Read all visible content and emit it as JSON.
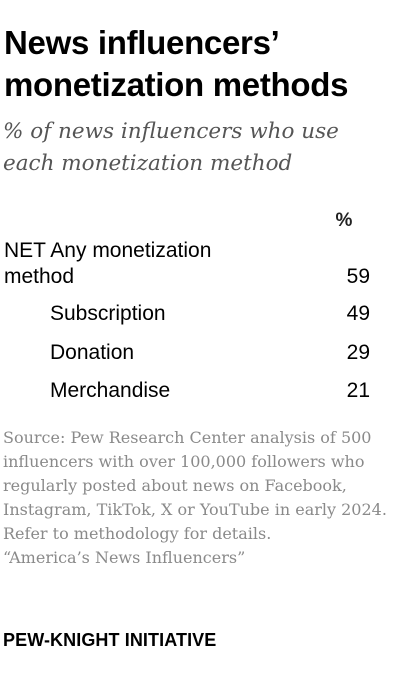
{
  "header": {
    "title": "News influencers’ monetization methods",
    "subtitle": "% of news influencers who use each monetization method"
  },
  "table": {
    "column_header": "%",
    "rows": [
      {
        "label": "NET Any monetization method",
        "value": "59",
        "indent": false
      },
      {
        "label": "Subscription",
        "value": "49",
        "indent": true
      },
      {
        "label": "Donation",
        "value": "29",
        "indent": true
      },
      {
        "label": "Merchandise",
        "value": "21",
        "indent": true
      }
    ]
  },
  "chart_data": {
    "type": "table",
    "title": "News influencers’ monetization methods",
    "subtitle": "% of news influencers who use each monetization method",
    "columns": [
      "",
      "%"
    ],
    "categories": [
      "NET Any monetization method",
      "Subscription",
      "Donation",
      "Merchandise"
    ],
    "values": [
      59,
      49,
      29,
      21
    ]
  },
  "footer": {
    "source": "Source: Pew Research Center analysis of 500 influencers with over 100,000 followers who regularly posted about news on Facebook, Instagram, TikTok, X or YouTube in early 2024. Refer to methodology for details.\n“America’s News Influencers”",
    "brand": "PEW-KNIGHT INITIATIVE"
  }
}
